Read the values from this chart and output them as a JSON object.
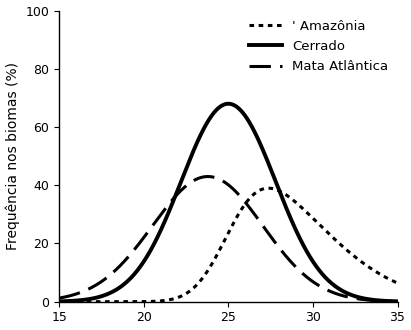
{
  "title": "",
  "xlabel": "",
  "ylabel": "Frequência nos biomas (%)",
  "xlim": [
    15,
    35
  ],
  "ylim": [
    0,
    100
  ],
  "xticks": [
    15,
    20,
    25,
    30,
    35
  ],
  "yticks": [
    0,
    20,
    40,
    60,
    80,
    100
  ],
  "background_color": "#ffffff",
  "curves": {
    "amazonia": {
      "label": "' Amazônia",
      "linestyle": "dotted",
      "linewidth": 2.2,
      "color": "#000000",
      "mean": 27.5,
      "std": 5.5,
      "peak": 39.0
    },
    "cerrado": {
      "label": "Cerrado",
      "linestyle": "solid",
      "linewidth": 2.8,
      "color": "#000000",
      "mean": 25.0,
      "std": 2.8,
      "peak": 68.0
    },
    "mata_atlantica": {
      "label": "Mata Atlântica",
      "linestyle": "dashed",
      "linewidth": 2.2,
      "color": "#000000",
      "mean": 25.5,
      "std": 3.5,
      "peak": 43.0
    }
  },
  "legend_fontsize": 9.5,
  "axis_fontsize": 10,
  "tick_fontsize": 9,
  "figsize": [
    4.11,
    3.3
  ],
  "dpi": 100
}
